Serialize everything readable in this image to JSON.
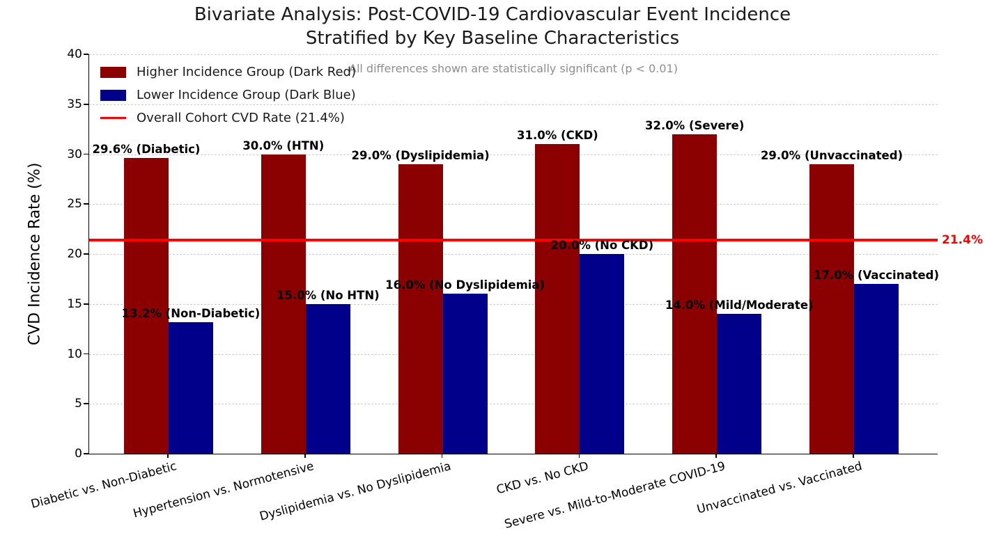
{
  "chart_data": {
    "type": "bar",
    "title": "Bivariate Analysis: Post-COVID-19 Cardiovascular Event Incidence\nStratified by Key Baseline Characteristics",
    "ylabel": "CVD Incidence Rate (%)",
    "ylim": [
      0,
      40
    ],
    "yticks": [
      0,
      5,
      10,
      15,
      20,
      25,
      30,
      35,
      40
    ],
    "grid": "horizontal-dashed",
    "legend_position": "upper-left",
    "annotation": "All differences shown are statistically significant (p < 0.01)",
    "categories": [
      "Diabetic vs. Non-Diabetic",
      "Hypertension vs. Normotensive",
      "Dyslipidemia vs. No Dyslipidemia",
      "CKD vs. No CKD",
      "Severe vs. Mild-to-Moderate COVID-19",
      "Unvaccinated vs. Vaccinated"
    ],
    "series": [
      {
        "name": "Higher Incidence Group (Dark Red)",
        "color": "#8b0000",
        "values": [
          29.6,
          30.0,
          29.0,
          31.0,
          32.0,
          29.0
        ],
        "labels": [
          "29.6% (Diabetic)",
          "30.0% (HTN)",
          "29.0% (Dyslipidemia)",
          "31.0% (CKD)",
          "32.0% (Severe)",
          "29.0% (Unvaccinated)"
        ]
      },
      {
        "name": "Lower Incidence Group (Dark Blue)",
        "color": "#00008b",
        "values": [
          13.2,
          15.0,
          16.0,
          20.0,
          14.0,
          17.0
        ],
        "labels": [
          "13.2% (Non-Diabetic)",
          "15.0% (No HTN)",
          "16.0% (No Dyslipidemia)",
          "20.0% (No CKD)",
          "14.0% (Mild/Moderate)",
          "17.0% (Vaccinated)"
        ]
      }
    ],
    "reference_line": {
      "value": 21.4,
      "label": "21.4%",
      "legend_label": "Overall Cohort CVD Rate (21.4%)",
      "color": "#ff0000"
    }
  }
}
